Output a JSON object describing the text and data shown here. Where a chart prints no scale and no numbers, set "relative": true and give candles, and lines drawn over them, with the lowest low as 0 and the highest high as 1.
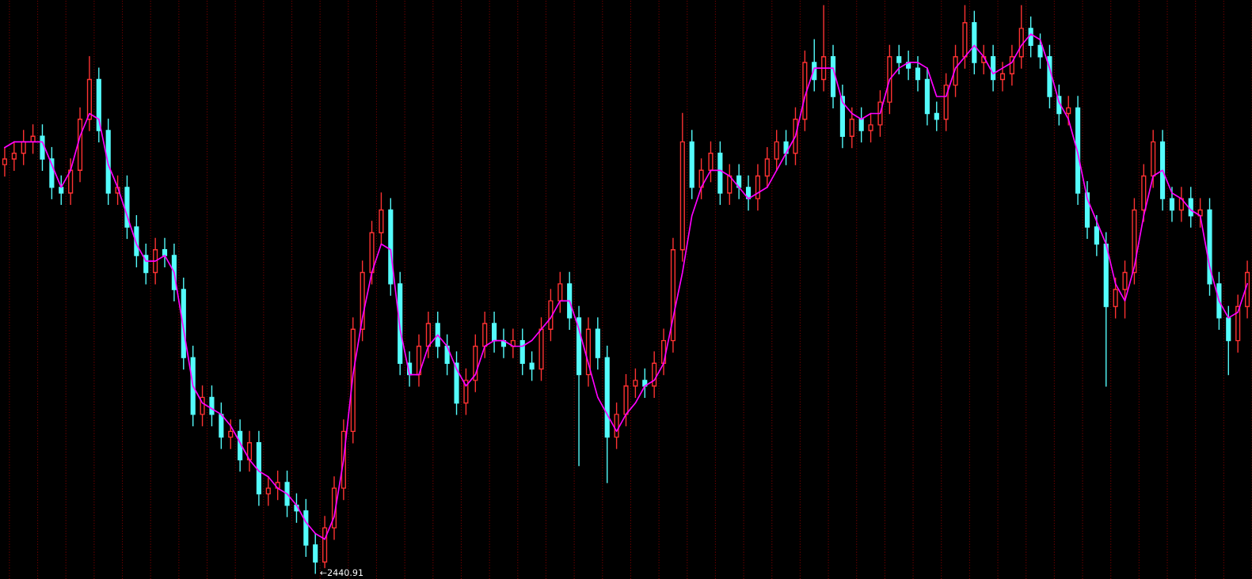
{
  "chart_data": {
    "type": "candlestick",
    "relative": true,
    "grid": "x",
    "categories": [
      null,
      null,
      null,
      null,
      null,
      null,
      null,
      null,
      null,
      null,
      null,
      null,
      null,
      null,
      null,
      null,
      null,
      null,
      null,
      null,
      null,
      null,
      null,
      null,
      null,
      null,
      null,
      null,
      null,
      null,
      null,
      null,
      null,
      null,
      null,
      null,
      null,
      null,
      null,
      null,
      null,
      null,
      null,
      null,
      null,
      null,
      null,
      null,
      null,
      null,
      null,
      null,
      null,
      null,
      null,
      null,
      null,
      null,
      null,
      null,
      null,
      null,
      null,
      null,
      null,
      null,
      null,
      null,
      null,
      null,
      null,
      null,
      null,
      null,
      null,
      null,
      null,
      null,
      null,
      null,
      null,
      null,
      null,
      null,
      null,
      null,
      null,
      null,
      null,
      null,
      null,
      null,
      null,
      null,
      null,
      null,
      null,
      null,
      null,
      null,
      null,
      null,
      null,
      null,
      null,
      null,
      null,
      null,
      null,
      null,
      null,
      null,
      null,
      null,
      null,
      null,
      null,
      null,
      null,
      null,
      null,
      null,
      null,
      null,
      null,
      null,
      null,
      null,
      null,
      null,
      null,
      null,
      null
    ],
    "ohlc": [
      [
        0.72,
        0.75,
        0.7,
        0.73
      ],
      [
        0.73,
        0.76,
        0.71,
        0.74
      ],
      [
        0.74,
        0.78,
        0.72,
        0.76
      ],
      [
        0.76,
        0.79,
        0.74,
        0.77
      ],
      [
        0.77,
        0.79,
        0.71,
        0.73
      ],
      [
        0.73,
        0.75,
        0.66,
        0.68
      ],
      [
        0.68,
        0.7,
        0.65,
        0.67
      ],
      [
        0.67,
        0.73,
        0.65,
        0.71
      ],
      [
        0.71,
        0.82,
        0.69,
        0.8
      ],
      [
        0.8,
        0.91,
        0.78,
        0.87
      ],
      [
        0.87,
        0.89,
        0.76,
        0.78
      ],
      [
        0.78,
        0.8,
        0.65,
        0.67
      ],
      [
        0.67,
        0.7,
        0.65,
        0.68
      ],
      [
        0.68,
        0.7,
        0.59,
        0.61
      ],
      [
        0.61,
        0.63,
        0.54,
        0.56
      ],
      [
        0.56,
        0.58,
        0.51,
        0.53
      ],
      [
        0.53,
        0.59,
        0.51,
        0.57
      ],
      [
        0.57,
        0.59,
        0.54,
        0.56
      ],
      [
        0.56,
        0.58,
        0.48,
        0.5
      ],
      [
        0.5,
        0.52,
        0.36,
        0.38
      ],
      [
        0.38,
        0.4,
        0.26,
        0.28
      ],
      [
        0.28,
        0.33,
        0.26,
        0.31
      ],
      [
        0.31,
        0.33,
        0.26,
        0.28
      ],
      [
        0.28,
        0.3,
        0.22,
        0.24
      ],
      [
        0.24,
        0.27,
        0.22,
        0.25
      ],
      [
        0.25,
        0.27,
        0.18,
        0.2
      ],
      [
        0.2,
        0.25,
        0.18,
        0.23
      ],
      [
        0.23,
        0.25,
        0.12,
        0.14
      ],
      [
        0.14,
        0.17,
        0.12,
        0.15
      ],
      [
        0.15,
        0.18,
        0.13,
        0.16
      ],
      [
        0.16,
        0.18,
        0.1,
        0.12
      ],
      [
        0.12,
        0.14,
        0.09,
        0.11
      ],
      [
        0.11,
        0.13,
        0.03,
        0.05
      ],
      [
        0.05,
        0.07,
        0,
        0.02
      ],
      [
        0.02,
        0.1,
        0.01,
        0.08
      ],
      [
        0.08,
        0.17,
        0.06,
        0.15
      ],
      [
        0.15,
        0.27,
        0.13,
        0.25
      ],
      [
        0.25,
        0.45,
        0.23,
        0.43
      ],
      [
        0.43,
        0.55,
        0.41,
        0.53
      ],
      [
        0.53,
        0.62,
        0.51,
        0.6
      ],
      [
        0.6,
        0.67,
        0.58,
        0.64
      ],
      [
        0.64,
        0.66,
        0.49,
        0.51
      ],
      [
        0.51,
        0.53,
        0.35,
        0.37
      ],
      [
        0.37,
        0.39,
        0.33,
        0.35
      ],
      [
        0.35,
        0.42,
        0.33,
        0.4
      ],
      [
        0.4,
        0.46,
        0.38,
        0.44
      ],
      [
        0.44,
        0.46,
        0.38,
        0.4
      ],
      [
        0.4,
        0.42,
        0.35,
        0.37
      ],
      [
        0.37,
        0.39,
        0.28,
        0.3
      ],
      [
        0.3,
        0.36,
        0.28,
        0.34
      ],
      [
        0.34,
        0.42,
        0.32,
        0.4
      ],
      [
        0.4,
        0.46,
        0.38,
        0.44
      ],
      [
        0.44,
        0.46,
        0.39,
        0.41
      ],
      [
        0.41,
        0.43,
        0.38,
        0.4
      ],
      [
        0.4,
        0.43,
        0.38,
        0.41
      ],
      [
        0.41,
        0.43,
        0.35,
        0.37
      ],
      [
        0.37,
        0.39,
        0.34,
        0.36
      ],
      [
        0.36,
        0.45,
        0.34,
        0.43
      ],
      [
        0.43,
        0.5,
        0.41,
        0.48
      ],
      [
        0.48,
        0.53,
        0.46,
        0.51
      ],
      [
        0.51,
        0.53,
        0.43,
        0.45
      ],
      [
        0.45,
        0.47,
        0.19,
        0.35
      ],
      [
        0.35,
        0.45,
        0.33,
        0.43
      ],
      [
        0.43,
        0.45,
        0.36,
        0.38
      ],
      [
        0.38,
        0.4,
        0.16,
        0.24
      ],
      [
        0.24,
        0.3,
        0.22,
        0.28
      ],
      [
        0.28,
        0.35,
        0.26,
        0.33
      ],
      [
        0.33,
        0.36,
        0.31,
        0.34
      ],
      [
        0.34,
        0.36,
        0.31,
        0.33
      ],
      [
        0.33,
        0.39,
        0.31,
        0.37
      ],
      [
        0.37,
        0.43,
        0.35,
        0.41
      ],
      [
        0.41,
        0.59,
        0.39,
        0.57
      ],
      [
        0.57,
        0.81,
        0.55,
        0.76
      ],
      [
        0.76,
        0.78,
        0.66,
        0.68
      ],
      [
        0.68,
        0.73,
        0.66,
        0.71
      ],
      [
        0.71,
        0.76,
        0.69,
        0.74
      ],
      [
        0.74,
        0.76,
        0.65,
        0.67
      ],
      [
        0.67,
        0.72,
        0.65,
        0.7
      ],
      [
        0.7,
        0.72,
        0.66,
        0.68
      ],
      [
        0.68,
        0.7,
        0.64,
        0.66
      ],
      [
        0.66,
        0.72,
        0.64,
        0.7
      ],
      [
        0.7,
        0.75,
        0.68,
        0.73
      ],
      [
        0.73,
        0.78,
        0.71,
        0.76
      ],
      [
        0.76,
        0.78,
        0.72,
        0.74
      ],
      [
        0.74,
        0.82,
        0.72,
        0.8
      ],
      [
        0.8,
        0.92,
        0.78,
        0.9
      ],
      [
        0.9,
        0.94,
        0.85,
        0.87
      ],
      [
        0.87,
        1.0,
        0.85,
        0.91
      ],
      [
        0.91,
        0.93,
        0.82,
        0.84
      ],
      [
        0.84,
        0.86,
        0.75,
        0.77
      ],
      [
        0.77,
        0.82,
        0.75,
        0.8
      ],
      [
        0.8,
        0.82,
        0.76,
        0.78
      ],
      [
        0.78,
        0.81,
        0.76,
        0.79
      ],
      [
        0.79,
        0.85,
        0.77,
        0.83
      ],
      [
        0.83,
        0.93,
        0.81,
        0.91
      ],
      [
        0.91,
        0.93,
        0.88,
        0.9
      ],
      [
        0.9,
        0.92,
        0.87,
        0.89
      ],
      [
        0.89,
        0.91,
        0.85,
        0.87
      ],
      [
        0.87,
        0.89,
        0.79,
        0.81
      ],
      [
        0.81,
        0.83,
        0.78,
        0.8
      ],
      [
        0.8,
        0.88,
        0.78,
        0.86
      ],
      [
        0.86,
        0.93,
        0.84,
        0.91
      ],
      [
        0.91,
        1.0,
        0.89,
        0.97
      ],
      [
        0.97,
        0.99,
        0.88,
        0.9
      ],
      [
        0.9,
        0.93,
        0.88,
        0.91
      ],
      [
        0.91,
        0.93,
        0.85,
        0.87
      ],
      [
        0.87,
        0.9,
        0.85,
        0.88
      ],
      [
        0.88,
        0.93,
        0.86,
        0.91
      ],
      [
        0.91,
        1.0,
        0.89,
        0.96
      ],
      [
        0.96,
        0.98,
        0.91,
        0.93
      ],
      [
        0.93,
        0.95,
        0.89,
        0.91
      ],
      [
        0.91,
        0.93,
        0.82,
        0.84
      ],
      [
        0.84,
        0.86,
        0.79,
        0.81
      ],
      [
        0.81,
        0.84,
        0.79,
        0.82
      ],
      [
        0.82,
        0.84,
        0.65,
        0.67
      ],
      [
        0.67,
        0.69,
        0.59,
        0.61
      ],
      [
        0.61,
        0.63,
        0.56,
        0.58
      ],
      [
        0.58,
        0.6,
        0.33,
        0.47
      ],
      [
        0.47,
        0.52,
        0.45,
        0.5
      ],
      [
        0.5,
        0.55,
        0.45,
        0.53
      ],
      [
        0.53,
        0.66,
        0.51,
        0.64
      ],
      [
        0.64,
        0.72,
        0.62,
        0.7
      ],
      [
        0.7,
        0.78,
        0.68,
        0.76
      ],
      [
        0.76,
        0.78,
        0.64,
        0.66
      ],
      [
        0.66,
        0.68,
        0.62,
        0.64
      ],
      [
        0.64,
        0.68,
        0.62,
        0.66
      ],
      [
        0.66,
        0.68,
        0.61,
        0.63
      ],
      [
        0.63,
        0.66,
        0.61,
        0.64
      ],
      [
        0.64,
        0.66,
        0.49,
        0.51
      ],
      [
        0.51,
        0.53,
        0.43,
        0.45
      ],
      [
        0.45,
        0.47,
        0.35,
        0.41
      ],
      [
        0.41,
        0.49,
        0.39,
        0.47
      ],
      [
        0.47,
        0.55,
        0.45,
        0.53
      ]
    ],
    "colors": [
      "#ff3232",
      "#ff3232",
      "#ff3232",
      "#ff3232",
      "#54fcfc",
      "#54fcfc",
      "#54fcfc",
      "#ff3232",
      "#ff3232",
      "#ff3232",
      "#54fcfc",
      "#54fcfc",
      "#ff3232",
      "#54fcfc",
      "#54fcfc",
      "#54fcfc",
      "#ff3232",
      "#54fcfc",
      "#54fcfc",
      "#54fcfc",
      "#54fcfc",
      "#ff3232",
      "#54fcfc",
      "#54fcfc",
      "#ff3232",
      "#54fcfc",
      "#ff3232",
      "#54fcfc",
      "#ff3232",
      "#ff3232",
      "#54fcfc",
      "#54fcfc",
      "#54fcfc",
      "#54fcfc",
      "#ff3232",
      "#ff3232",
      "#ff3232",
      "#ff3232",
      "#ff3232",
      "#ff3232",
      "#ff3232",
      "#54fcfc",
      "#54fcfc",
      "#54fcfc",
      "#ff3232",
      "#ff3232",
      "#54fcfc",
      "#54fcfc",
      "#54fcfc",
      "#ff3232",
      "#ff3232",
      "#ff3232",
      "#54fcfc",
      "#54fcfc",
      "#ff3232",
      "#54fcfc",
      "#54fcfc",
      "#ff3232",
      "#ff3232",
      "#ff3232",
      "#54fcfc",
      "#54fcfc",
      "#ff3232",
      "#54fcfc",
      "#54fcfc",
      "#ff3232",
      "#ff3232",
      "#ff3232",
      "#54fcfc",
      "#ff3232",
      "#ff3232",
      "#ff3232",
      "#ff3232",
      "#54fcfc",
      "#ff3232",
      "#ff3232",
      "#54fcfc",
      "#ff3232",
      "#54fcfc",
      "#54fcfc",
      "#ff3232",
      "#ff3232",
      "#ff3232",
      "#54fcfc",
      "#ff3232",
      "#ff3232",
      "#54fcfc",
      "#ff3232",
      "#54fcfc",
      "#54fcfc",
      "#ff3232",
      "#54fcfc",
      "#ff3232",
      "#ff3232",
      "#ff3232",
      "#54fcfc",
      "#54fcfc",
      "#54fcfc",
      "#54fcfc",
      "#54fcfc",
      "#ff3232",
      "#ff3232",
      "#ff3232",
      "#54fcfc",
      "#ff3232",
      "#54fcfc",
      "#ff3232",
      "#ff3232",
      "#ff3232",
      "#54fcfc",
      "#54fcfc",
      "#54fcfc",
      "#54fcfc",
      "#ff3232",
      "#54fcfc",
      "#54fcfc",
      "#54fcfc",
      "#54fcfc",
      "#ff3232",
      "#ff3232",
      "#ff3232",
      "#ff3232",
      "#ff3232",
      "#54fcfc",
      "#54fcfc",
      "#ff3232",
      "#54fcfc",
      "#ff3232",
      "#54fcfc",
      "#54fcfc",
      "#54fcfc",
      "#ff3232",
      "#ff3232"
    ],
    "series": [
      {
        "type": "line",
        "color": "#ff00ff",
        "values": [
          0.75,
          0.76,
          0.76,
          0.76,
          0.76,
          0.72,
          0.68,
          0.71,
          0.77,
          0.81,
          0.8,
          0.72,
          0.68,
          0.63,
          0.58,
          0.55,
          0.55,
          0.56,
          0.53,
          0.43,
          0.33,
          0.3,
          0.29,
          0.28,
          0.26,
          0.23,
          0.2,
          0.18,
          0.17,
          0.15,
          0.14,
          0.12,
          0.09,
          0.07,
          0.06,
          0.1,
          0.2,
          0.35,
          0.45,
          0.53,
          0.58,
          0.57,
          0.43,
          0.35,
          0.35,
          0.4,
          0.42,
          0.4,
          0.36,
          0.33,
          0.35,
          0.4,
          0.41,
          0.41,
          0.4,
          0.4,
          0.41,
          0.43,
          0.45,
          0.48,
          0.48,
          0.43,
          0.37,
          0.31,
          0.28,
          0.25,
          0.28,
          0.3,
          0.33,
          0.34,
          0.37,
          0.45,
          0.53,
          0.63,
          0.68,
          0.71,
          0.71,
          0.7,
          0.68,
          0.66,
          0.67,
          0.68,
          0.71,
          0.74,
          0.77,
          0.84,
          0.89,
          0.89,
          0.89,
          0.83,
          0.81,
          0.8,
          0.81,
          0.81,
          0.87,
          0.89,
          0.9,
          0.9,
          0.89,
          0.84,
          0.84,
          0.89,
          0.91,
          0.93,
          0.91,
          0.88,
          0.89,
          0.9,
          0.93,
          0.95,
          0.94,
          0.89,
          0.83,
          0.8,
          0.74,
          0.66,
          0.62,
          0.58,
          0.51,
          0.48,
          0.54,
          0.63,
          0.7,
          0.71,
          0.67,
          0.66,
          0.64,
          0.63,
          0.54,
          0.48,
          0.45,
          0.46,
          0.51
        ]
      }
    ],
    "annotations": [
      "←2440.91"
    ]
  }
}
